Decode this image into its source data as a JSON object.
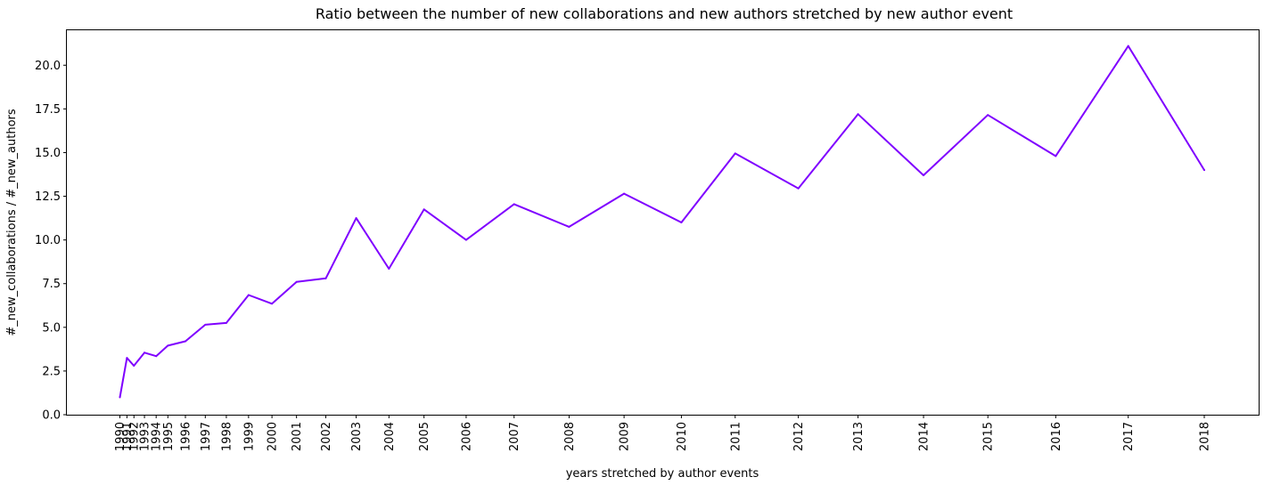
{
  "chart_data": {
    "type": "line",
    "title": "Ratio between the number of new collaborations and new authors stretched by new author event",
    "xlabel": "years stretched by author events",
    "ylabel": "#_new_collaborations / #_new_authors",
    "ylim": [
      0,
      22
    ],
    "yticks": [
      0.0,
      2.5,
      5.0,
      7.5,
      10.0,
      12.5,
      15.0,
      17.5,
      20.0
    ],
    "ytick_labels": [
      "0.0",
      "2.5",
      "5.0",
      "7.5",
      "10.0",
      "12.5",
      "15.0",
      "17.5",
      "20.0"
    ],
    "grid": false,
    "series_color": "#7F00FF",
    "x_labels": [
      "1990",
      "1991",
      "1992",
      "1993",
      "1994",
      "1995",
      "1996",
      "1997",
      "1998",
      "1999",
      "2000",
      "2001",
      "2002",
      "2003",
      "2004",
      "2005",
      "2006",
      "2007",
      "2008",
      "2009",
      "2010",
      "2011",
      "2012",
      "2013",
      "2014",
      "2015",
      "2016",
      "2017",
      "2018"
    ],
    "x_cumulative_author_events": [
      0.0,
      0.06,
      0.12,
      0.21,
      0.31,
      0.41,
      0.56,
      0.73,
      0.91,
      1.1,
      1.3,
      1.51,
      1.76,
      2.02,
      2.3,
      2.6,
      2.96,
      3.37,
      3.84,
      4.31,
      4.8,
      5.26,
      5.8,
      6.31,
      6.87,
      7.42,
      8.0,
      8.62,
      9.27
    ],
    "values": [
      1.0,
      3.25,
      2.8,
      3.55,
      3.35,
      3.95,
      4.2,
      5.15,
      5.25,
      6.85,
      6.35,
      7.6,
      7.8,
      11.25,
      8.35,
      11.75,
      10.0,
      12.05,
      10.75,
      12.65,
      11.0,
      14.95,
      12.95,
      17.2,
      13.7,
      17.15,
      14.8,
      21.1,
      14.0
    ]
  }
}
